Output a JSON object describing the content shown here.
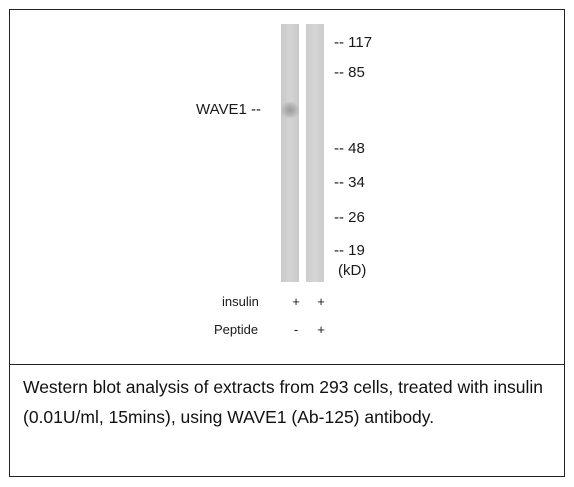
{
  "blot": {
    "protein_label": "WAVE1 --",
    "markers": [
      "-- 117",
      "-- 85",
      "-- 48",
      "-- 34",
      "-- 26",
      "-- 19"
    ],
    "unit": "(kD)",
    "rows": [
      {
        "label": "insulin",
        "lane1": "+",
        "lane2": "+"
      },
      {
        "label": "Peptide",
        "lane1": "-",
        "lane2": "+"
      }
    ]
  },
  "caption": "Western blot analysis of extracts from 293 cells, treated with insulin (0.01U/ml, 15mins), using WAVE1 (Ab-125) antibody."
}
